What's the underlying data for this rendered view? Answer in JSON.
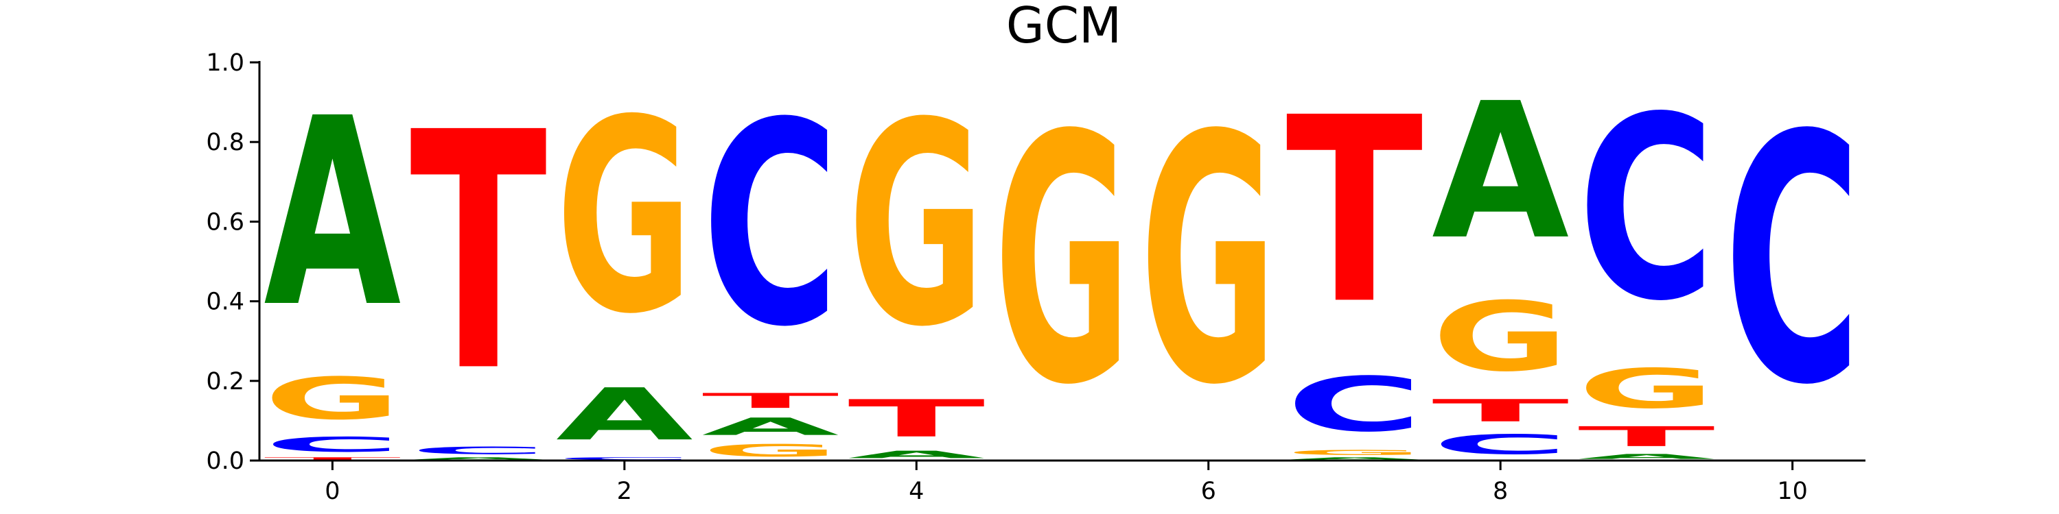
{
  "chart_data": {
    "type": "sequence-logo",
    "title": "GCM",
    "xlabel": "",
    "ylabel": "",
    "xlim": [
      -0.5,
      10.5
    ],
    "ylim": [
      0,
      1
    ],
    "xticks": [
      0,
      2,
      4,
      6,
      8,
      10
    ],
    "xtick_labels": [
      "0",
      "2",
      "4",
      "6",
      "8",
      "10"
    ],
    "yticks": [
      0,
      0.2,
      0.4,
      0.6,
      0.8,
      1.0
    ],
    "ytick_labels": [
      "0.0",
      "0.2",
      "0.4",
      "0.6",
      "0.8",
      "1.0"
    ],
    "grid": false,
    "colors": {
      "A": "#008000",
      "C": "#0000ff",
      "G": "#ffa500",
      "T": "#ff0000"
    },
    "positions": [
      {
        "x": 0,
        "stack": [
          {
            "letter": "T",
            "value": 0.01
          },
          {
            "letter": "C",
            "value": 0.06
          },
          {
            "letter": "G",
            "value": 0.17
          },
          {
            "letter": "A",
            "value": 0.76
          }
        ]
      },
      {
        "x": 1,
        "stack": [
          {
            "letter": "A",
            "value": 0.01
          },
          {
            "letter": "C",
            "value": 0.03
          },
          {
            "letter": "T",
            "value": 0.96
          }
        ]
      },
      {
        "x": 2,
        "stack": [
          {
            "letter": "C",
            "value": 0.01
          },
          {
            "letter": "A",
            "value": 0.21
          },
          {
            "letter": "G",
            "value": 0.78
          }
        ]
      },
      {
        "x": 3,
        "stack": [
          {
            "letter": "G",
            "value": 0.05
          },
          {
            "letter": "A",
            "value": 0.07
          },
          {
            "letter": "T",
            "value": 0.06
          },
          {
            "letter": "C",
            "value": 0.82
          }
        ]
      },
      {
        "x": 4,
        "stack": [
          {
            "letter": "A",
            "value": 0.03
          },
          {
            "letter": "T",
            "value": 0.15
          },
          {
            "letter": "G",
            "value": 0.82
          }
        ]
      },
      {
        "x": 5,
        "stack": [
          {
            "letter": "G",
            "value": 1.0
          }
        ]
      },
      {
        "x": 6,
        "stack": [
          {
            "letter": "G",
            "value": 1.0
          }
        ]
      },
      {
        "x": 7,
        "stack": [
          {
            "letter": "A",
            "value": 0.01
          },
          {
            "letter": "G",
            "value": 0.02
          },
          {
            "letter": "C",
            "value": 0.22
          },
          {
            "letter": "T",
            "value": 0.75
          }
        ]
      },
      {
        "x": 8,
        "stack": [
          {
            "letter": "C",
            "value": 0.08
          },
          {
            "letter": "T",
            "value": 0.09
          },
          {
            "letter": "G",
            "value": 0.28
          },
          {
            "letter": "A",
            "value": 0.55
          }
        ]
      },
      {
        "x": 9,
        "stack": [
          {
            "letter": "A",
            "value": 0.02
          },
          {
            "letter": "T",
            "value": 0.08
          },
          {
            "letter": "G",
            "value": 0.16
          },
          {
            "letter": "C",
            "value": 0.74
          }
        ]
      },
      {
        "x": 10,
        "stack": [
          {
            "letter": "C",
            "value": 1.0
          }
        ]
      }
    ]
  }
}
